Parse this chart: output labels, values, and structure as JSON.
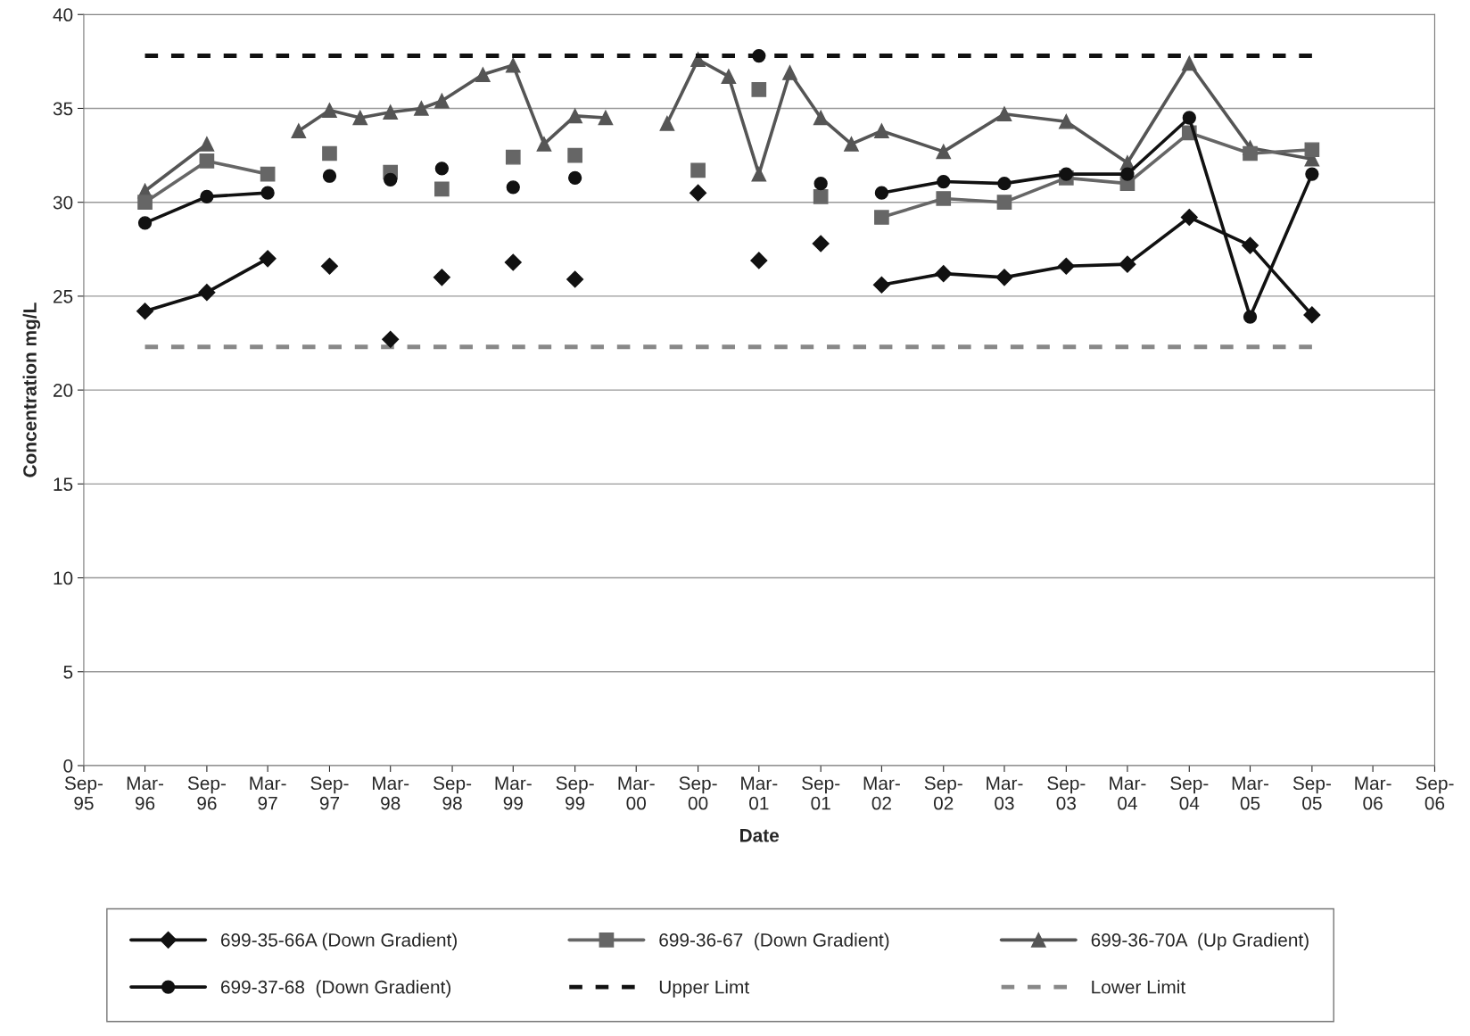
{
  "chart_data": {
    "type": "line",
    "xlabel": "Date",
    "ylabel": "Concentration mg/L",
    "xlim": [
      "1995-09",
      "2006-09"
    ],
    "ylim": [
      0,
      40
    ],
    "yticks": [
      0,
      5,
      10,
      15,
      20,
      25,
      30,
      35,
      40
    ],
    "xticks": [
      {
        "value": "1995-09",
        "label": "Sep-\n95"
      },
      {
        "value": "1996-03",
        "label": "Mar-\n96"
      },
      {
        "value": "1996-09",
        "label": "Sep-\n96"
      },
      {
        "value": "1997-03",
        "label": "Mar-\n97"
      },
      {
        "value": "1997-09",
        "label": "Sep-\n97"
      },
      {
        "value": "1998-03",
        "label": "Mar-\n98"
      },
      {
        "value": "1998-09",
        "label": "Sep-\n98"
      },
      {
        "value": "1999-03",
        "label": "Mar-\n99"
      },
      {
        "value": "1999-09",
        "label": "Sep-\n99"
      },
      {
        "value": "2000-03",
        "label": "Mar-\n00"
      },
      {
        "value": "2000-09",
        "label": "Sep-\n00"
      },
      {
        "value": "2001-03",
        "label": "Mar-\n01"
      },
      {
        "value": "2001-09",
        "label": "Sep-\n01"
      },
      {
        "value": "2002-03",
        "label": "Mar-\n02"
      },
      {
        "value": "2002-09",
        "label": "Sep-\n02"
      },
      {
        "value": "2003-03",
        "label": "Mar-\n03"
      },
      {
        "value": "2003-09",
        "label": "Sep-\n03"
      },
      {
        "value": "2004-03",
        "label": "Mar-\n04"
      },
      {
        "value": "2004-09",
        "label": "Sep-\n04"
      },
      {
        "value": "2005-03",
        "label": "Mar-\n05"
      },
      {
        "value": "2005-09",
        "label": "Sep-\n05"
      },
      {
        "value": "2006-03",
        "label": "Mar-\n06"
      },
      {
        "value": "2006-09",
        "label": "Sep-\n06"
      }
    ],
    "grid": "y",
    "legend": "bottom",
    "series": [
      {
        "name": "699-35-66A (Down Gradient)",
        "color": "#111111",
        "marker": "diamond",
        "x": [
          "1996-03",
          "1996-09",
          "1997-03",
          "1997-06",
          "1997-09",
          "1997-12",
          "1998-03",
          "1998-06",
          "1998-08",
          "1998-12",
          "1999-03",
          "1999-06",
          "1999-09",
          "2000-03",
          "2000-09",
          "2000-12",
          "2001-03",
          "2001-06",
          "2001-09",
          "2001-12",
          "2002-03",
          "2002-09",
          "2003-03",
          "2003-09",
          "2004-03",
          "2004-09",
          "2005-03",
          "2005-09"
        ],
        "values": [
          24.2,
          25.2,
          27.0,
          null,
          26.6,
          null,
          22.7,
          null,
          26.0,
          null,
          26.8,
          null,
          25.9,
          null,
          30.5,
          null,
          26.9,
          null,
          27.8,
          null,
          25.6,
          26.2,
          26.0,
          26.6,
          26.7,
          29.2,
          27.7,
          24.0
        ]
      },
      {
        "name": "699-36-67  (Down Gradient)",
        "color": "#666666",
        "marker": "square",
        "x": [
          "1996-03",
          "1996-09",
          "1997-03",
          "1997-06",
          "1997-09",
          "1997-12",
          "1998-03",
          "1998-06",
          "1998-08",
          "1998-12",
          "1999-03",
          "1999-06",
          "1999-09",
          "2000-03",
          "2000-09",
          "2000-12",
          "2001-03",
          "2001-06",
          "2001-09",
          "2001-12",
          "2002-03",
          "2002-09",
          "2003-03",
          "2003-09",
          "2004-03",
          "2004-09",
          "2005-03",
          "2005-09"
        ],
        "values": [
          30.0,
          32.2,
          31.5,
          null,
          32.6,
          null,
          31.6,
          null,
          30.7,
          null,
          32.4,
          null,
          32.5,
          null,
          31.7,
          null,
          36.0,
          null,
          30.3,
          null,
          29.2,
          30.2,
          30.0,
          31.3,
          31.0,
          33.7,
          32.6,
          32.8
        ]
      },
      {
        "name": "699-36-70A  (Up Gradient)",
        "color": "#555555",
        "marker": "triangle",
        "x": [
          "1996-03",
          "1996-09",
          "1997-03",
          "1997-06",
          "1997-09",
          "1997-12",
          "1998-03",
          "1998-06",
          "1998-08",
          "1998-12",
          "1999-03",
          "1999-06",
          "1999-09",
          "1999-12",
          "2000-03",
          "2000-06",
          "2000-09",
          "2000-12",
          "2001-03",
          "2001-06",
          "2001-09",
          "2001-12",
          "2002-03",
          "2002-09",
          "2003-03",
          "2003-09",
          "2004-03",
          "2004-09",
          "2005-03",
          "2005-09"
        ],
        "values": [
          30.6,
          33.1,
          null,
          33.8,
          34.9,
          34.5,
          34.8,
          35.0,
          35.4,
          36.8,
          37.3,
          33.1,
          34.6,
          34.5,
          null,
          34.2,
          37.6,
          36.7,
          31.5,
          36.9,
          34.5,
          33.1,
          33.8,
          32.7,
          34.7,
          34.3,
          32.1,
          37.4,
          32.9,
          32.3
        ]
      },
      {
        "name": "699-37-68  (Down Gradient)",
        "color": "#111111",
        "marker": "circle",
        "x": [
          "1996-03",
          "1996-09",
          "1997-03",
          "1997-06",
          "1997-09",
          "1997-12",
          "1998-03",
          "1998-06",
          "1998-08",
          "1998-12",
          "1999-03",
          "1999-06",
          "1999-09",
          "2000-06",
          "2001-03",
          "2001-06",
          "2001-09",
          "2001-12",
          "2002-03",
          "2002-09",
          "2003-03",
          "2003-09",
          "2004-03",
          "2004-09",
          "2005-03",
          "2005-09"
        ],
        "values": [
          28.9,
          30.3,
          30.5,
          null,
          31.4,
          null,
          31.2,
          null,
          31.8,
          null,
          30.8,
          null,
          31.3,
          null,
          37.8,
          null,
          31.0,
          null,
          30.5,
          31.1,
          31.0,
          31.5,
          31.5,
          34.5,
          23.9,
          31.5
        ]
      },
      {
        "name": "Upper Limt",
        "color": "#111111",
        "marker": "none",
        "line_style": "dashed",
        "x": [
          "1996-03",
          "2005-09"
        ],
        "values": [
          37.8,
          37.8
        ]
      },
      {
        "name": "Lower Limit",
        "color": "#888888",
        "marker": "none",
        "line_style": "dashed",
        "x": [
          "1996-03",
          "2005-09"
        ],
        "values": [
          22.3,
          22.3
        ]
      }
    ]
  }
}
